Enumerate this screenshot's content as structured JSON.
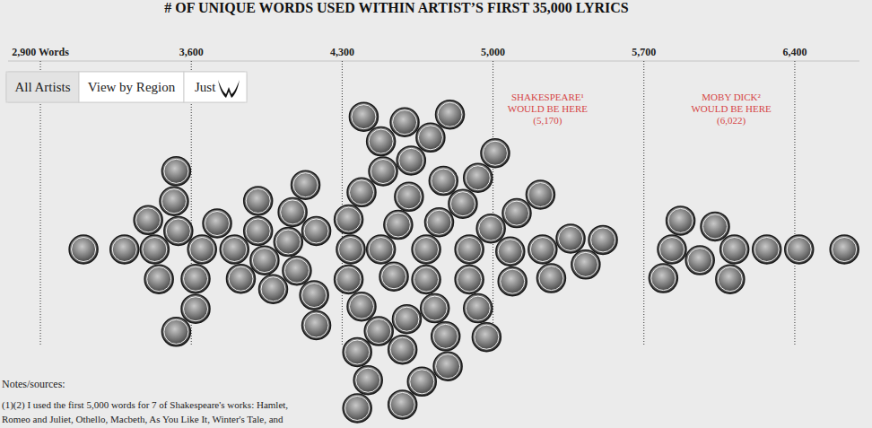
{
  "chart_data": {
    "type": "beeswarm",
    "title": "# OF UNIQUE WORDS USED WITHIN ARTIST’S FIRST 35,000 LYRICS",
    "xlim": [
      2750,
      6700
    ],
    "xticks": [
      {
        "value": 2900,
        "label": "2,900 Words"
      },
      {
        "value": 3600,
        "label": "3,600"
      },
      {
        "value": 4300,
        "label": "4,300"
      },
      {
        "value": 5000,
        "label": "5,000"
      },
      {
        "value": 5700,
        "label": "5,700"
      },
      {
        "value": 6400,
        "label": "6,400"
      }
    ],
    "grid": true,
    "values": [
      3100,
      3290,
      3430,
      3450,
      3400,
      3540,
      3520,
      3650,
      3620,
      3620,
      3530,
      3530,
      3720,
      3800,
      3830,
      3910,
      3940,
      3910,
      3980,
      4050,
      4070,
      4090,
      4170,
      4180,
      4130,
      4180,
      4340,
      4330,
      4330,
      4390,
      4480,
      4540,
      4690,
      4690,
      4390,
      4560,
      4750,
      4890,
      4610,
      4470,
      4730,
      4890,
      4860,
      4990,
      5080,
      4600,
      4770,
      4490,
      4620,
      4930,
      5090,
      4930,
      4780,
      4480,
      4710,
      4370,
      4580,
      4970,
      4790,
      4420,
      4590,
      5010,
      4670,
      4800,
      4400,
      4580,
      4370,
      5230,
      5110,
      5270,
      5220,
      5360,
      5430,
      5510,
      5830,
      5790,
      5960,
      5870,
      6120,
      6100,
      6030,
      6270,
      6420,
      6630
    ],
    "annotations": [
      {
        "lines": [
          "SHAKESPEARE¹",
          "WOULD BE HERE",
          "(5,170)"
        ],
        "value": 5170
      },
      {
        "lines": [
          "MOBY DICK²",
          "WOULD BE HERE",
          "(6,022)"
        ],
        "value": 6022
      }
    ],
    "color": "#d64545"
  },
  "controls": {
    "buttons": [
      "All Artists",
      "View by Region",
      "Just"
    ],
    "selected": 0
  },
  "notes": {
    "title": "Notes/sources:",
    "lines": [
      "(1)(2) I used the first 5,000 words for 7 of Shakespeare's works: Hamlet,",
      "Romeo and Juliet, Othello, Macbeth, As You Like It, Winter's Tale, and"
    ]
  }
}
